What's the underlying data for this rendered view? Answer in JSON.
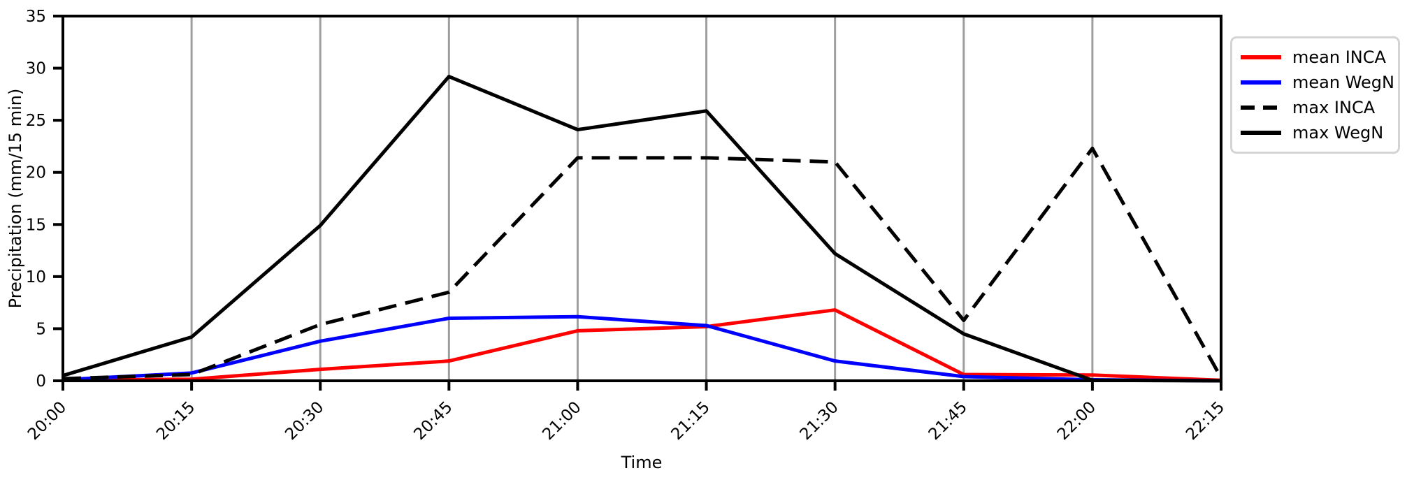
{
  "chart_data": {
    "type": "line",
    "title": "",
    "xlabel": "Time",
    "ylabel": "Precipitation (mm/15 min)",
    "x_ticklabels": [
      "20:00",
      "20:15",
      "20:30",
      "20:45",
      "21:00",
      "21:15",
      "21:30",
      "21:45",
      "22:00",
      "22:15"
    ],
    "y_ticks": [
      0,
      5,
      10,
      15,
      20,
      25,
      30,
      35
    ],
    "ylim": [
      0,
      35
    ],
    "grid": "vertical-gridlines-only",
    "legend_position": "outside-top-right",
    "series": [
      {
        "name": "mean INCA",
        "color": "#ff0000",
        "style": "solid",
        "values": [
          0.05,
          0.15,
          1.1,
          1.9,
          4.8,
          5.2,
          6.8,
          0.6,
          0.55,
          0.05
        ]
      },
      {
        "name": "mean WegN",
        "color": "#0000ff",
        "style": "solid",
        "values": [
          0.1,
          0.75,
          3.8,
          6.0,
          6.15,
          5.3,
          1.9,
          0.4,
          0.1,
          0.0
        ]
      },
      {
        "name": "max INCA",
        "color": "#000000",
        "style": "dashed",
        "values": [
          0.2,
          0.6,
          5.4,
          8.5,
          21.4,
          21.4,
          21.0,
          5.8,
          22.3,
          0.3
        ]
      },
      {
        "name": "max WegN",
        "color": "#000000",
        "style": "solid",
        "values": [
          0.5,
          4.2,
          14.9,
          29.2,
          24.1,
          25.9,
          12.2,
          4.5,
          0.05,
          0.0
        ]
      }
    ],
    "colors": {
      "grid": "#9e9e9e",
      "axis": "#000000",
      "legend_border": "#d4d4d4",
      "background": "#ffffff"
    }
  }
}
